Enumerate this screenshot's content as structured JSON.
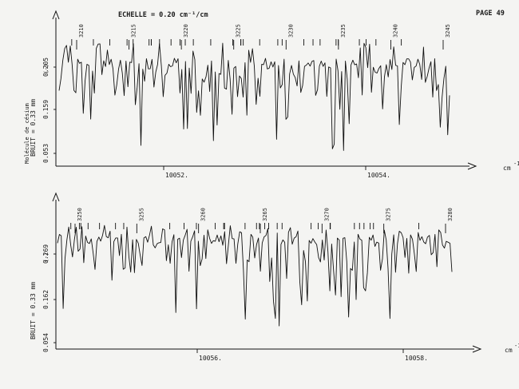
{
  "page": {
    "scale_label": "ECHELLE = 0.20 cm⁻¹/cm",
    "page_label": "PAGE 49",
    "molecule_label": "Molécule de césium",
    "unit_label": "cm",
    "unit_sup": "-1"
  },
  "chart_data": [
    {
      "type": "line",
      "y_title": "(-)",
      "noise_label": "BRUIT = 0.33 mm",
      "yticks": [
        "0.205",
        "0.159",
        "0.053"
      ],
      "ylim": [
        0.053,
        0.205
      ],
      "x_ref_labels": [
        "10052.",
        "10054."
      ],
      "line_ids": [
        "3210",
        "3215",
        "3220",
        "3225",
        "3230",
        "3235",
        "3240",
        "3245"
      ],
      "line_marks": 30,
      "points": 210,
      "seed": 17
    },
    {
      "type": "line",
      "y_title": "(-)",
      "noise_label": "BRUIT = 0.33 mm",
      "yticks": [
        "0.269",
        "0.162",
        "0.054"
      ],
      "ylim": [
        0.054,
        0.269
      ],
      "x_ref_labels": [
        "10056.",
        "10058."
      ],
      "line_ids": [
        "3250",
        "3255",
        "3260",
        "3265",
        "3270",
        "3275",
        "3280"
      ],
      "line_marks": 30,
      "points": 210,
      "seed": 91
    }
  ]
}
